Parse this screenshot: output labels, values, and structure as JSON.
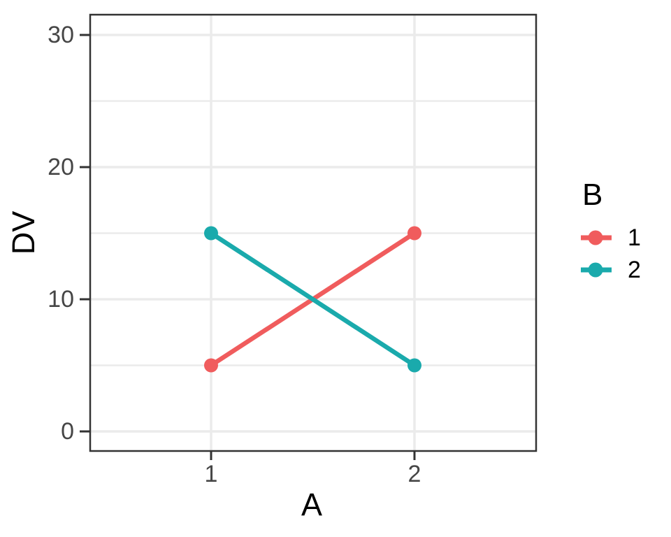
{
  "chart_data": {
    "type": "line",
    "title": "",
    "xlabel": "A",
    "ylabel": "DV",
    "x": [
      1,
      2
    ],
    "xticks": [
      1,
      2
    ],
    "yticks": [
      0,
      10,
      20,
      30
    ],
    "yticks_minor": [
      5,
      15,
      25
    ],
    "ylim": [
      0,
      30
    ],
    "grid": "major and minor horizontal, major vertical, light gray on white, black panel border",
    "legend": {
      "title": "B",
      "position": "right"
    },
    "series": [
      {
        "name": "1",
        "color": "#F05C5D",
        "values": [
          5,
          15
        ]
      },
      {
        "name": "2",
        "color": "#1AAAAC",
        "values": [
          15,
          5
        ]
      }
    ]
  },
  "style_colors": {
    "grid": "#EBEBEB",
    "panel_border": "#333333",
    "tick_mark": "#333333",
    "tick_label": "#464646"
  }
}
